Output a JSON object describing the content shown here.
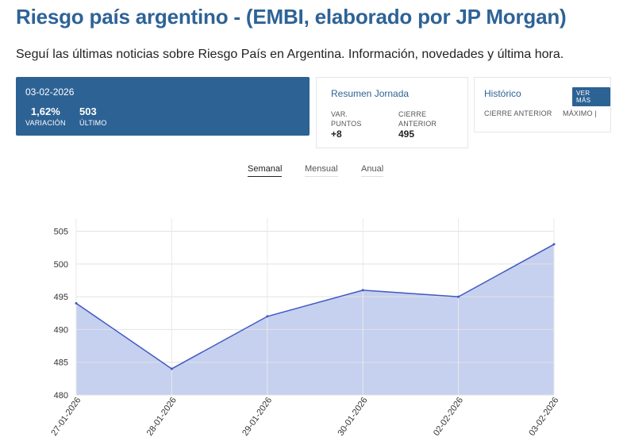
{
  "page": {
    "title": "Riesgo país argentino - (EMBI, elaborado por JP Morgan)",
    "subtitle": "Seguí las últimas noticias sobre Riesgo País en Argentina. Información, novedades y última hora."
  },
  "summary_card": {
    "date": "03-02-2026",
    "variation_value": "1,62%",
    "variation_label": "VARIACIÓN",
    "last_value": "503",
    "last_label": "ÚLTIMO"
  },
  "resumen": {
    "title": "Resumen Jornada",
    "var_label_1": "VAR.",
    "var_label_2": "PUNTOS",
    "var_value": "+8",
    "cierre_label_1": "CIERRE",
    "cierre_label_2": "ANTERIOR",
    "cierre_value": "495"
  },
  "historico": {
    "title": "Histórico",
    "ver_mas": "VER MÁS",
    "cierre_anterior": "CIERRE ANTERIOR",
    "maximo": "MÁXIMO |"
  },
  "tabs": [
    {
      "label": "Semanal",
      "active": true
    },
    {
      "label": "Mensual",
      "active": false
    },
    {
      "label": "Anual",
      "active": false
    }
  ],
  "colors": {
    "accent": "#2d6294",
    "line": "#3f59c2",
    "fill": "#c6d0ef"
  },
  "chart_data": {
    "type": "area",
    "categories": [
      "27-01-2026",
      "28-01-2026",
      "29-01-2026",
      "30-01-2026",
      "02-02-2026",
      "03-02-2026"
    ],
    "values": [
      494,
      484,
      492,
      496,
      495,
      503
    ],
    "yticks": [
      480,
      485,
      490,
      495,
      500,
      505
    ],
    "ylim": [
      480,
      507
    ],
    "grid": true,
    "title": "",
    "xlabel": "",
    "ylabel": ""
  }
}
